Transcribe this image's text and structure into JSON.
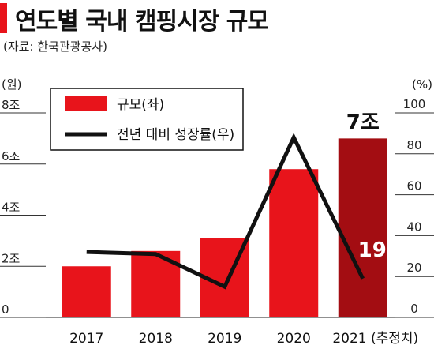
{
  "title": "연도별 국내 캠핑시장 규모",
  "source": "(자료: 한국관광공사)",
  "chart_data": {
    "type": "bar",
    "categories": [
      "2017",
      "2018",
      "2019",
      "2020",
      "2021 (추정치)"
    ],
    "series": [
      {
        "name": "규모(좌)",
        "type": "bar",
        "axis": "left",
        "values": [
          2.0,
          2.6,
          3.1,
          5.8,
          7.0
        ]
      },
      {
        "name": "전년 대비 성장률(우)",
        "type": "line",
        "axis": "right",
        "values": [
          32,
          31,
          15,
          88,
          19
        ]
      }
    ],
    "left_axis": {
      "unit": "(원)",
      "ylim": [
        0,
        8
      ],
      "ticks": [
        0,
        2,
        4,
        6,
        8
      ],
      "tick_labels": [
        "0",
        "2조",
        "4조",
        "6조",
        "8조"
      ]
    },
    "right_axis": {
      "unit": "(%)",
      "ylim": [
        0,
        100
      ],
      "ticks": [
        0,
        20,
        40,
        60,
        80,
        100
      ],
      "tick_labels": [
        "0",
        "20",
        "40",
        "60",
        "80",
        "100"
      ]
    },
    "annotations": [
      {
        "category_index": 4,
        "series": "bar",
        "text": "7조"
      },
      {
        "category_index": 4,
        "series": "line",
        "text": "19"
      }
    ],
    "legend_position": "top-left",
    "colors": {
      "bar": "#e8141b",
      "bar_highlight": "#a30d12",
      "line": "#111111"
    }
  }
}
